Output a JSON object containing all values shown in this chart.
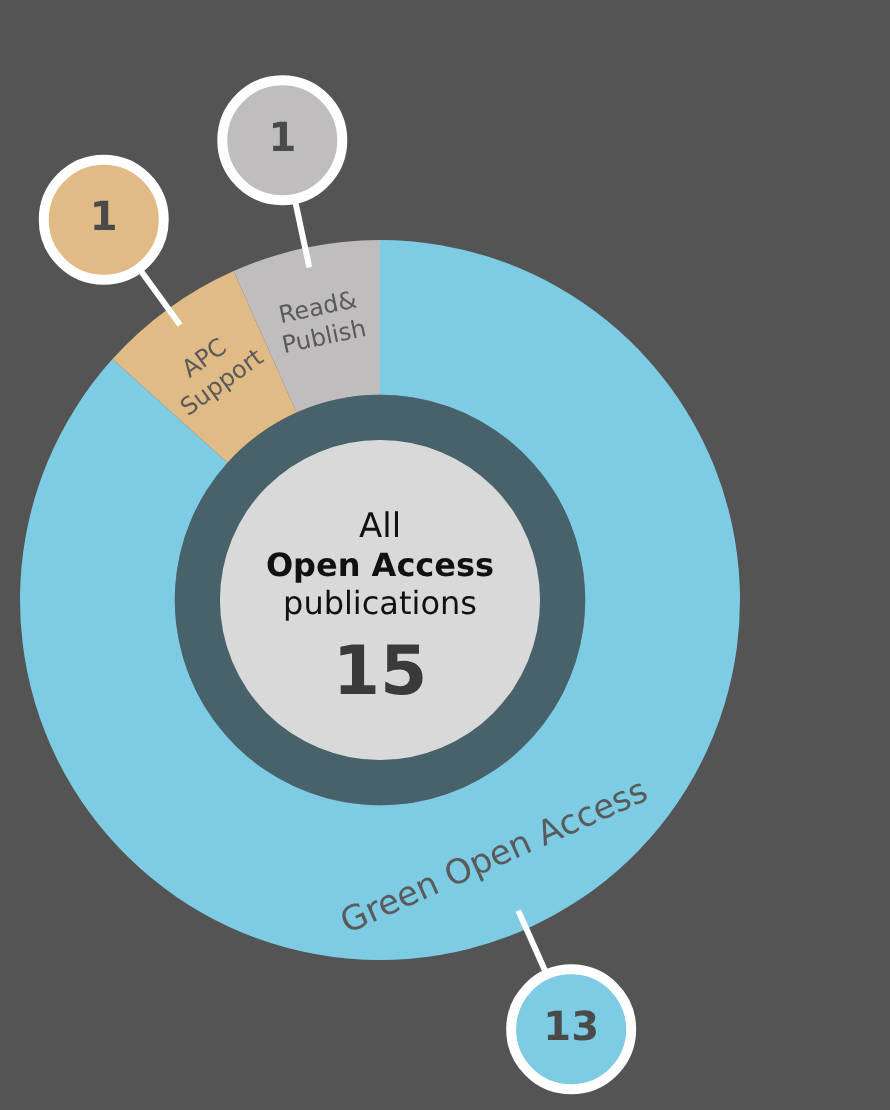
{
  "chart_data": {
    "type": "donut",
    "categories": [
      "Green Open Access",
      "APC Support",
      "Read& Publish"
    ],
    "values": [
      13,
      1,
      1
    ],
    "colors": [
      "#7ecbe4",
      "#e0bb85",
      "#c0bdbe"
    ],
    "data_labels": true,
    "legend": false,
    "annotations": [
      "All",
      "Open Access",
      "publications",
      "15"
    ]
  }
}
